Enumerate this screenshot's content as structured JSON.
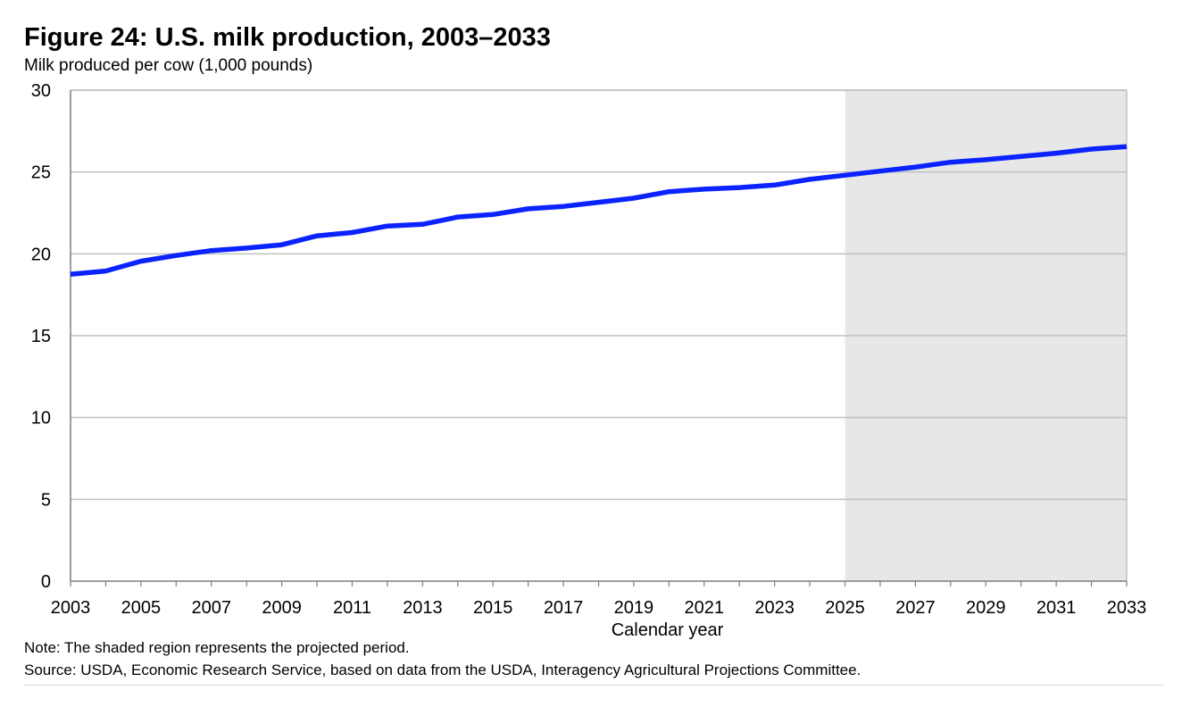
{
  "header": {
    "title": "Figure 24: U.S. milk production, 2003–2033",
    "subtitle": "Milk produced per cow (1,000 pounds)"
  },
  "footer": {
    "note": "Note: The shaded region represents the projected period.",
    "source": "Source: USDA, Economic Research Service, based on data from the USDA, Interagency Agricultural Projections Committee."
  },
  "chart_data": {
    "type": "line",
    "title": "Figure 24: U.S. milk production, 2003–2033",
    "ylabel": "Milk produced per cow (1,000 pounds)",
    "xlabel": "Calendar year",
    "x": [
      2003,
      2004,
      2005,
      2006,
      2007,
      2008,
      2009,
      2010,
      2011,
      2012,
      2013,
      2014,
      2015,
      2016,
      2017,
      2018,
      2019,
      2020,
      2021,
      2022,
      2023,
      2024,
      2025,
      2026,
      2027,
      2028,
      2029,
      2030,
      2031,
      2032,
      2033
    ],
    "series": [
      {
        "values": [
          18.75,
          18.95,
          19.55,
          19.9,
          20.2,
          20.35,
          20.55,
          21.1,
          21.3,
          21.7,
          21.8,
          22.25,
          22.4,
          22.75,
          22.9,
          23.15,
          23.4,
          23.8,
          23.95,
          24.05,
          24.2,
          24.55,
          24.8,
          25.05,
          25.3,
          25.6,
          25.75,
          25.95,
          26.15,
          26.4,
          26.55
        ],
        "color": "#0a23ff"
      }
    ],
    "xlim": [
      2003,
      2033
    ],
    "ylim": [
      0,
      30
    ],
    "yticks": [
      0,
      5,
      10,
      15,
      20,
      25,
      30
    ],
    "xticks": [
      2003,
      2005,
      2007,
      2009,
      2011,
      2013,
      2015,
      2017,
      2019,
      2021,
      2023,
      2025,
      2027,
      2029,
      2031,
      2033
    ],
    "projection_start": 2025,
    "shade_color": "#e7e7e7",
    "grid": true,
    "grid_color": "#c0c0c0"
  }
}
